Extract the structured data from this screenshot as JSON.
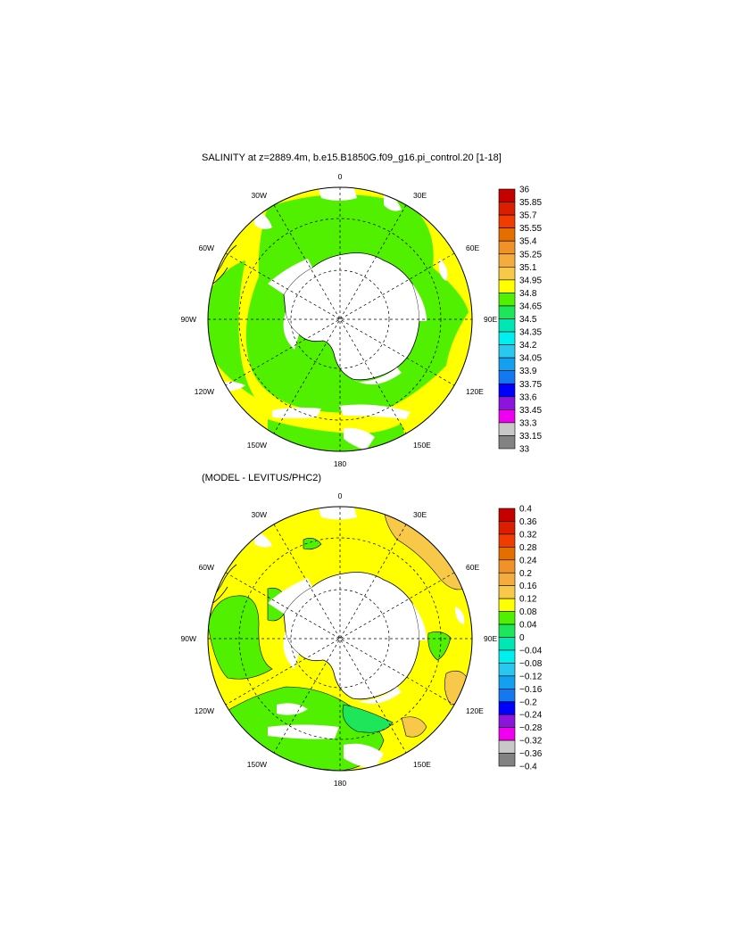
{
  "panels": [
    {
      "title": "SALINITY at z=2889.4m, b.e15.B1850G.f09_g16.pi_control.20 [1-18]",
      "colorbar": {
        "labels": [
          "36",
          "35.85",
          "35.7",
          "35.55",
          "35.4",
          "35.25",
          "35.1",
          "34.95",
          "34.8",
          "34.65",
          "34.5",
          "34.35",
          "34.2",
          "34.05",
          "33.9",
          "33.75",
          "33.6",
          "33.45",
          "33.3",
          "33.15",
          "33"
        ]
      }
    },
    {
      "title": "(MODEL - LEVITUS/PHC2)",
      "colorbar": {
        "labels": [
          "0.4",
          "0.36",
          "0.32",
          "0.28",
          "0.24",
          "0.2",
          "0.16",
          "0.12",
          "0.08",
          "0.04",
          "0",
          "−0.04",
          "−0.08",
          "−0.12",
          "−0.16",
          "−0.2",
          "−0.24",
          "−0.28",
          "−0.32",
          "−0.36",
          "−0.4"
        ]
      }
    }
  ],
  "map_labels": {
    "lon0": "0",
    "lon30e": "30E",
    "lon60e": "60E",
    "lon90e": "90E",
    "lon120e": "120E",
    "lon150e": "150E",
    "lon180": "180",
    "lon150w": "150W",
    "lon120w": "120W",
    "lon90w": "90W",
    "lon60w": "60W",
    "lon30w": "30W"
  },
  "colors": {
    "colorbar_fill": [
      "#c40000",
      "#dc1e00",
      "#f03c00",
      "#e46e00",
      "#f09228",
      "#f5ac3c",
      "#f8c848",
      "#ffff00",
      "#50f000",
      "#1ee65a",
      "#00e6b4",
      "#00f0f0",
      "#28c8f0",
      "#14a0f0",
      "#1478f0",
      "#0000ff",
      "#8c14dc",
      "#f000f0",
      "#c8c8c8",
      "#828282"
    ],
    "land": "#ffffff",
    "no_data": "#ffffff"
  },
  "chart_data": [
    {
      "type": "heatmap",
      "projection": "south polar stereographic",
      "title": "SALINITY at z=2889.4m, b.e15.B1850G.f09_g16.pi_control.20 [1-18]",
      "colorbar_levels": [
        36,
        35.85,
        35.7,
        35.55,
        35.4,
        35.25,
        35.1,
        34.95,
        34.8,
        34.65,
        34.5,
        34.35,
        34.2,
        34.05,
        33.9,
        33.75,
        33.6,
        33.45,
        33.3,
        33.15,
        33
      ],
      "dominant_ranges": [
        "34.65-34.8 near Antarctica",
        "34.8-34.95 in outer ocean"
      ]
    },
    {
      "type": "heatmap",
      "projection": "south polar stereographic",
      "title": "(MODEL - LEVITUS/PHC2)",
      "colorbar_levels": [
        0.4,
        0.36,
        0.32,
        0.28,
        0.24,
        0.2,
        0.16,
        0.12,
        0.08,
        0.04,
        0,
        -0.04,
        -0.08,
        -0.12,
        -0.16,
        -0.2,
        -0.24,
        -0.28,
        -0.32,
        -0.36,
        -0.4
      ],
      "dominant_ranges": [
        "0.08-0.12 across most of ocean",
        "0.04-0.08 in Pacific sector",
        "0.12-0.16 patches in Indian sector"
      ]
    }
  ]
}
